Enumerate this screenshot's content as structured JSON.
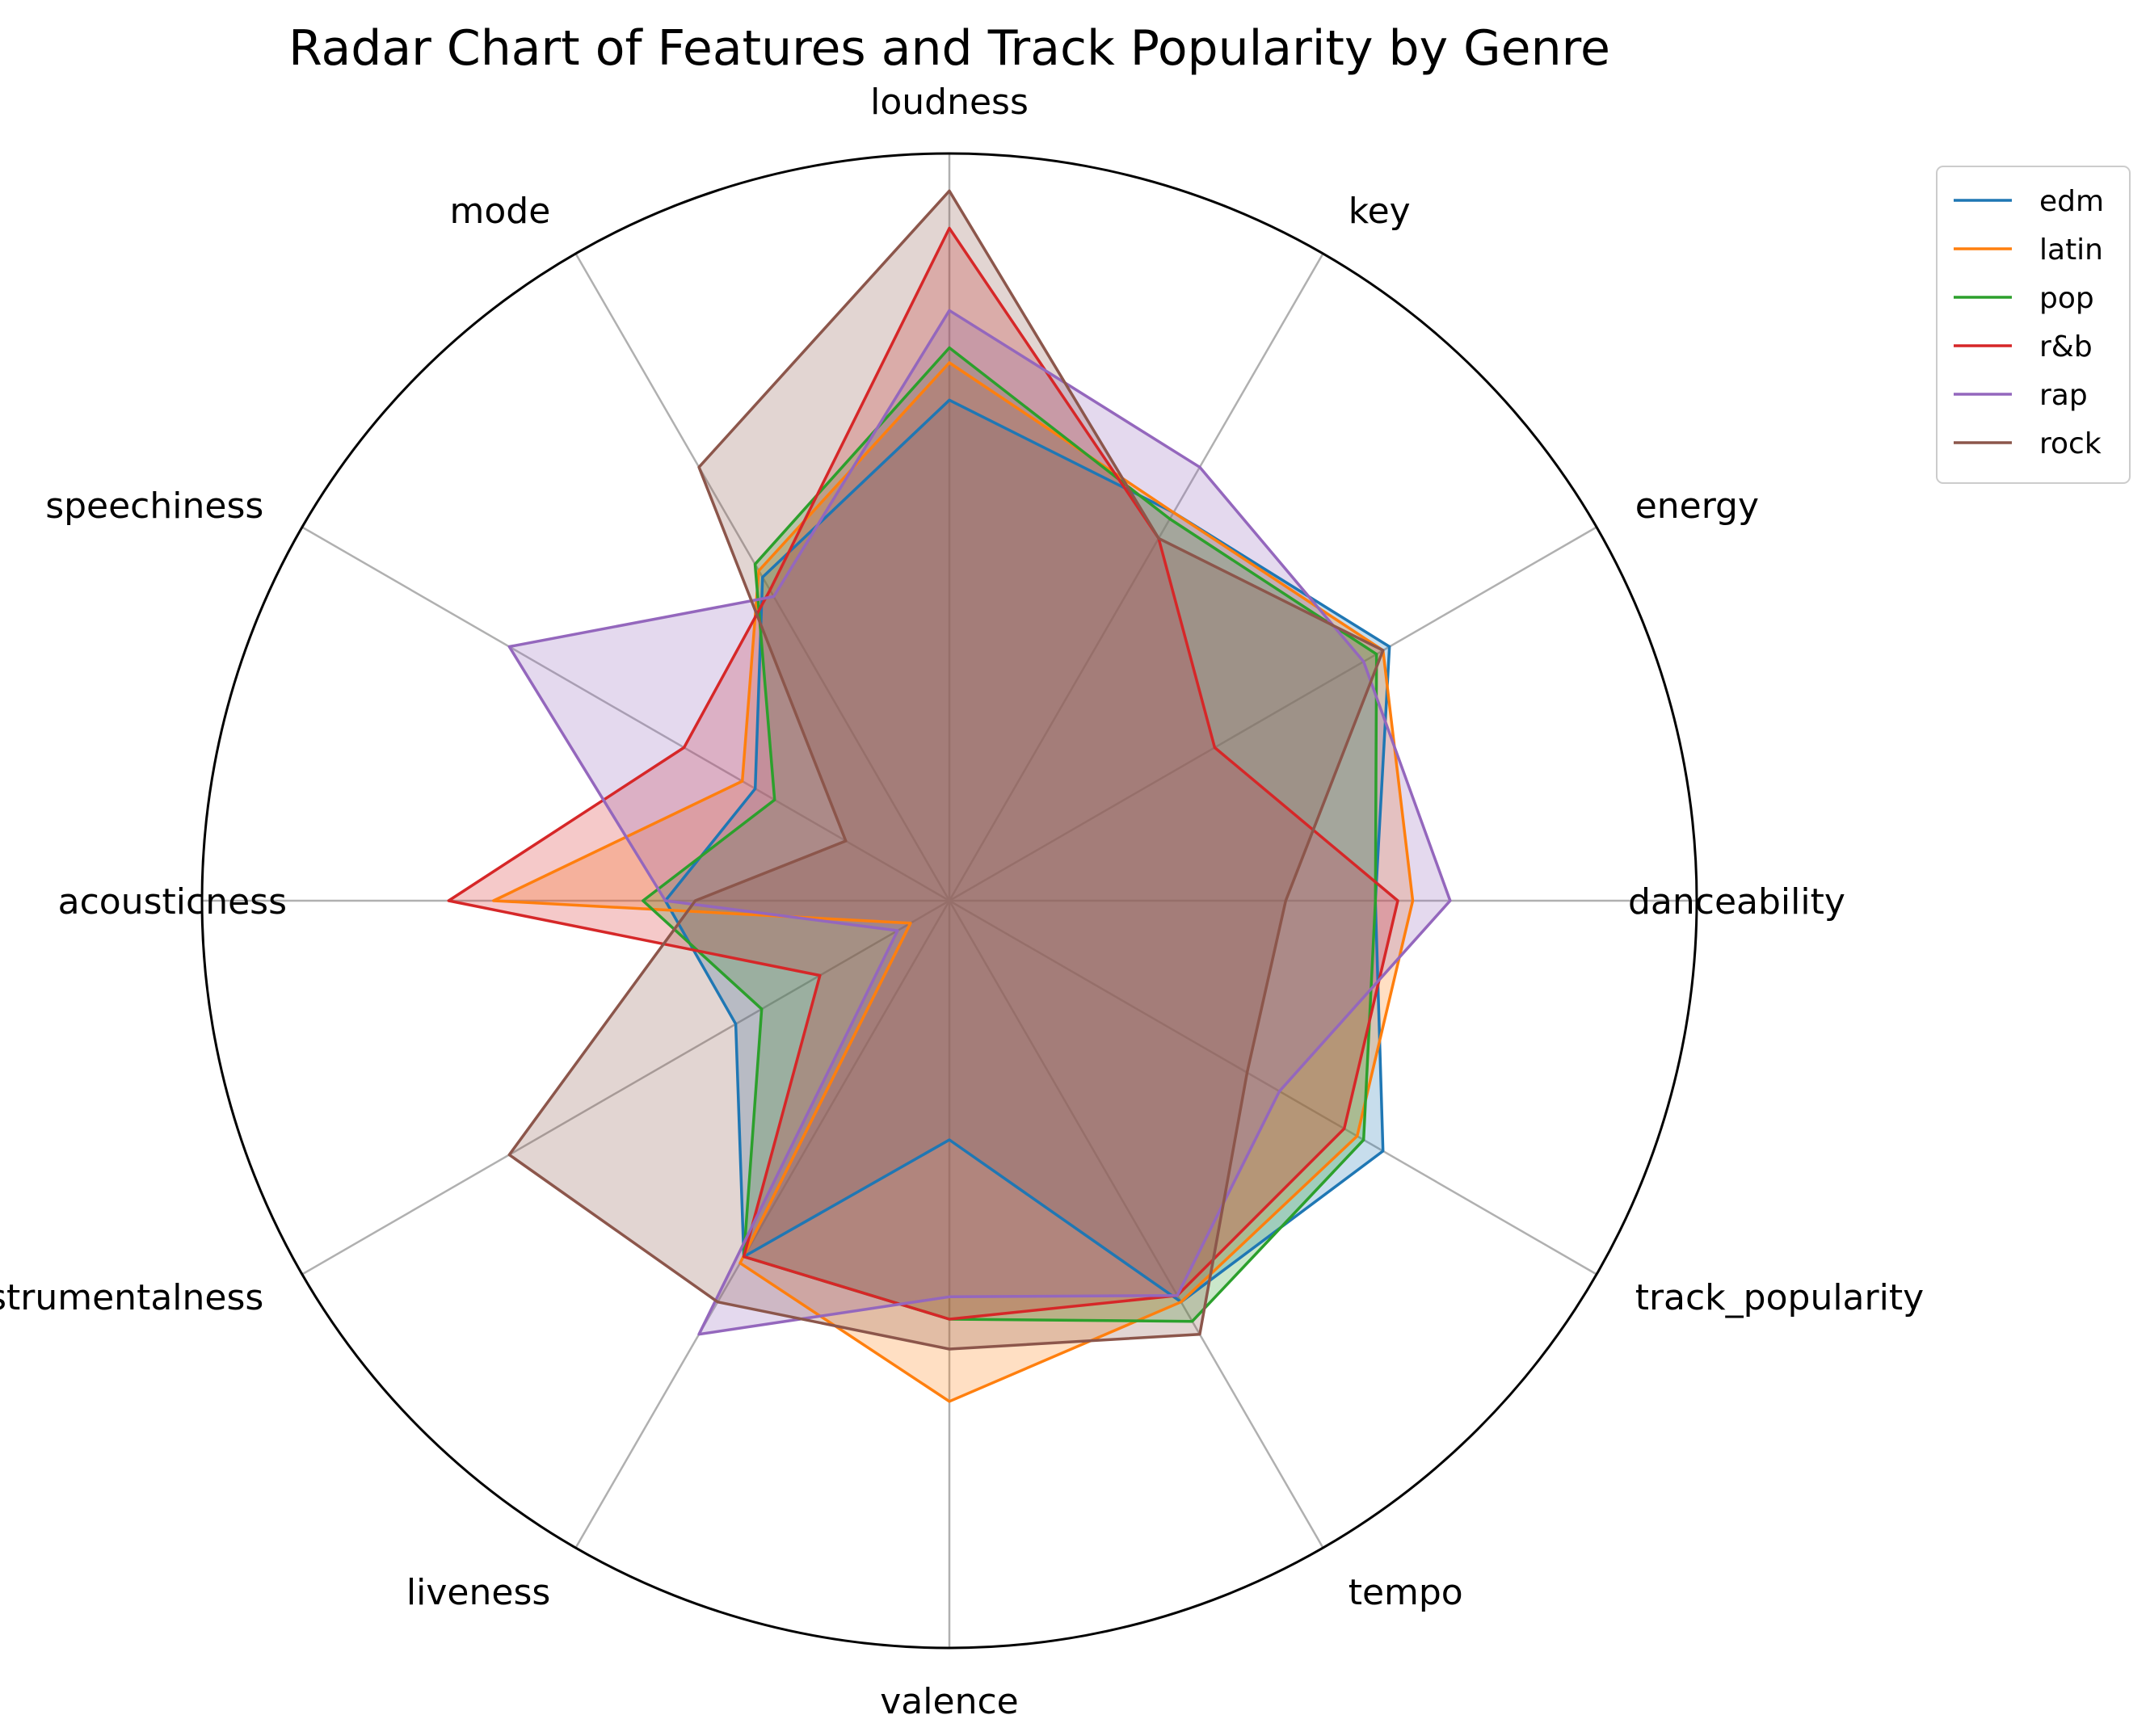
{
  "chart_data": {
    "type": "radar",
    "title": "Radar Chart of Features and Track Popularity by Genre",
    "axes": [
      "danceability",
      "energy",
      "key",
      "loudness",
      "mode",
      "speechiness",
      "acousticness",
      "instrumentalness",
      "liveness",
      "valence",
      "tempo",
      "track_popularity"
    ],
    "rmax": 1.0,
    "grid": true,
    "legend_position": "upper-right-outside",
    "series": [
      {
        "name": "edm",
        "color": "#1f77b4",
        "values": [
          0.57,
          0.68,
          0.6,
          0.67,
          0.5,
          0.3,
          0.38,
          0.33,
          0.55,
          0.32,
          0.62,
          0.67
        ]
      },
      {
        "name": "latin",
        "color": "#ff7f0e",
        "values": [
          0.62,
          0.67,
          0.6,
          0.72,
          0.51,
          0.32,
          0.61,
          0.06,
          0.56,
          0.67,
          0.62,
          0.63
        ]
      },
      {
        "name": "pop",
        "color": "#2ca02c",
        "values": [
          0.57,
          0.66,
          0.59,
          0.74,
          0.52,
          0.27,
          0.41,
          0.29,
          0.55,
          0.56,
          0.65,
          0.64
        ]
      },
      {
        "name": "r&b",
        "color": "#d62728",
        "values": [
          0.6,
          0.41,
          0.56,
          0.9,
          0.48,
          0.41,
          0.67,
          0.2,
          0.55,
          0.56,
          0.61,
          0.61
        ]
      },
      {
        "name": "rap",
        "color": "#9467bd",
        "values": [
          0.67,
          0.64,
          0.67,
          0.79,
          0.47,
          0.68,
          0.38,
          0.08,
          0.67,
          0.53,
          0.61,
          0.51
        ]
      },
      {
        "name": "rock",
        "color": "#8c564b",
        "values": [
          0.45,
          0.67,
          0.56,
          0.95,
          0.67,
          0.16,
          0.34,
          0.68,
          0.62,
          0.6,
          0.67,
          0.46
        ]
      }
    ]
  }
}
